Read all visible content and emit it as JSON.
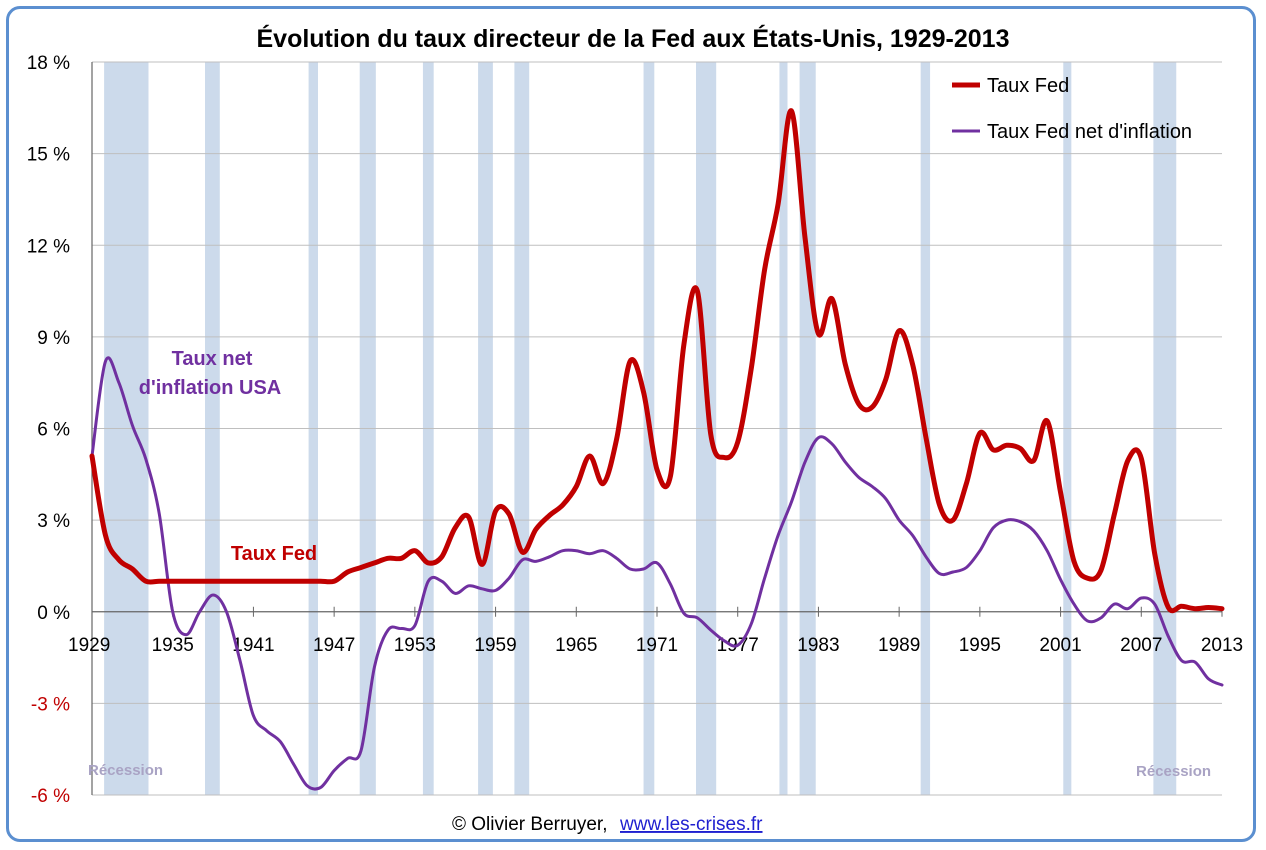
{
  "chart_data": {
    "type": "line",
    "title": "Évolution du taux directeur de la Fed aux États-Unis, 1929-2013",
    "xlim": [
      1929,
      2013
    ],
    "ylim": [
      -6,
      18
    ],
    "x_ticks": [
      "1929",
      "1935",
      "1941",
      "1947",
      "1953",
      "1959",
      "1965",
      "1971",
      "1977",
      "1983",
      "1989",
      "1995",
      "2001",
      "2007",
      "2013"
    ],
    "y_ticks": [
      "18 %",
      "15 %",
      "12 %",
      "9 %",
      "6 %",
      "3 %",
      "0 %",
      "-3 %",
      "-6 %"
    ],
    "y_tick_values": [
      18,
      15,
      12,
      9,
      6,
      3,
      0,
      -3,
      -6
    ],
    "x_tick_values": [
      1929,
      1935,
      1941,
      1947,
      1953,
      1959,
      1965,
      1971,
      1977,
      1983,
      1989,
      1995,
      2001,
      2007,
      2013
    ],
    "grid": "horizontal",
    "legend_position": "top-right",
    "series": [
      {
        "name": "Taux Fed",
        "color": "#c00000",
        "points": [
          [
            1929,
            5.1
          ],
          [
            1930,
            2.5
          ],
          [
            1931,
            1.7
          ],
          [
            1932,
            1.4
          ],
          [
            1933,
            1.0
          ],
          [
            1934,
            1.0
          ],
          [
            1935,
            1.0
          ],
          [
            1936,
            1.0
          ],
          [
            1937,
            1.0
          ],
          [
            1938,
            1.0
          ],
          [
            1939,
            1.0
          ],
          [
            1940,
            1.0
          ],
          [
            1941,
            1.0
          ],
          [
            1942,
            1.0
          ],
          [
            1943,
            1.0
          ],
          [
            1944,
            1.0
          ],
          [
            1945,
            1.0
          ],
          [
            1946,
            1.0
          ],
          [
            1947,
            1.0
          ],
          [
            1948,
            1.3
          ],
          [
            1949,
            1.45
          ],
          [
            1950,
            1.6
          ],
          [
            1951,
            1.75
          ],
          [
            1952,
            1.75
          ],
          [
            1953,
            2.0
          ],
          [
            1954,
            1.6
          ],
          [
            1955,
            1.8
          ],
          [
            1956,
            2.75
          ],
          [
            1957,
            3.1
          ],
          [
            1958,
            1.55
          ],
          [
            1959,
            3.3
          ],
          [
            1960,
            3.2
          ],
          [
            1961,
            1.95
          ],
          [
            1962,
            2.7
          ],
          [
            1963,
            3.15
          ],
          [
            1964,
            3.5
          ],
          [
            1965,
            4.1
          ],
          [
            1966,
            5.1
          ],
          [
            1967,
            4.2
          ],
          [
            1968,
            5.65
          ],
          [
            1969,
            8.2
          ],
          [
            1970,
            7.2
          ],
          [
            1971,
            4.65
          ],
          [
            1972,
            4.45
          ],
          [
            1973,
            8.75
          ],
          [
            1974,
            10.5
          ],
          [
            1975,
            5.8
          ],
          [
            1976,
            5.05
          ],
          [
            1977,
            5.55
          ],
          [
            1978,
            7.95
          ],
          [
            1979,
            11.2
          ],
          [
            1980,
            13.35
          ],
          [
            1981,
            16.4
          ],
          [
            1982,
            12.25
          ],
          [
            1983,
            9.1
          ],
          [
            1984,
            10.25
          ],
          [
            1985,
            8.1
          ],
          [
            1986,
            6.8
          ],
          [
            1987,
            6.7
          ],
          [
            1988,
            7.6
          ],
          [
            1989,
            9.2
          ],
          [
            1990,
            8.1
          ],
          [
            1991,
            5.7
          ],
          [
            1992,
            3.5
          ],
          [
            1993,
            3.0
          ],
          [
            1994,
            4.2
          ],
          [
            1995,
            5.85
          ],
          [
            1996,
            5.3
          ],
          [
            1997,
            5.45
          ],
          [
            1998,
            5.35
          ],
          [
            1999,
            4.95
          ],
          [
            2000,
            6.25
          ],
          [
            2001,
            3.9
          ],
          [
            2002,
            1.65
          ],
          [
            2003,
            1.1
          ],
          [
            2004,
            1.35
          ],
          [
            2005,
            3.2
          ],
          [
            2006,
            4.95
          ],
          [
            2007,
            5.02
          ],
          [
            2008,
            1.9
          ],
          [
            2009,
            0.15
          ],
          [
            2010,
            0.18
          ],
          [
            2011,
            0.1
          ],
          [
            2012,
            0.14
          ],
          [
            2013,
            0.1
          ]
        ]
      },
      {
        "name": "Taux Fed net d'inflation",
        "color": "#7030a0",
        "points": [
          [
            1929,
            5.1
          ],
          [
            1930,
            8.2
          ],
          [
            1931,
            7.5
          ],
          [
            1932,
            6.1
          ],
          [
            1933,
            5.0
          ],
          [
            1934,
            3.2
          ],
          [
            1935,
            0.0
          ],
          [
            1936,
            -0.75
          ],
          [
            1937,
            0.0
          ],
          [
            1938,
            0.55
          ],
          [
            1939,
            0.0
          ],
          [
            1940,
            -1.6
          ],
          [
            1941,
            -3.4
          ],
          [
            1942,
            -3.9
          ],
          [
            1943,
            -4.25
          ],
          [
            1944,
            -5.0
          ],
          [
            1945,
            -5.7
          ],
          [
            1946,
            -5.75
          ],
          [
            1947,
            -5.2
          ],
          [
            1948,
            -4.8
          ],
          [
            1949,
            -4.55
          ],
          [
            1950,
            -1.8
          ],
          [
            1951,
            -0.6
          ],
          [
            1952,
            -0.55
          ],
          [
            1953,
            -0.45
          ],
          [
            1954,
            1.0
          ],
          [
            1955,
            1.0
          ],
          [
            1956,
            0.6
          ],
          [
            1957,
            0.85
          ],
          [
            1958,
            0.75
          ],
          [
            1959,
            0.7
          ],
          [
            1960,
            1.1
          ],
          [
            1961,
            1.7
          ],
          [
            1962,
            1.65
          ],
          [
            1963,
            1.8
          ],
          [
            1964,
            2.0
          ],
          [
            1965,
            2.0
          ],
          [
            1966,
            1.9
          ],
          [
            1967,
            2.0
          ],
          [
            1968,
            1.75
          ],
          [
            1969,
            1.4
          ],
          [
            1970,
            1.4
          ],
          [
            1971,
            1.6
          ],
          [
            1972,
            0.9
          ],
          [
            1973,
            -0.05
          ],
          [
            1974,
            -0.2
          ],
          [
            1975,
            -0.6
          ],
          [
            1976,
            -0.95
          ],
          [
            1977,
            -1.1
          ],
          [
            1978,
            -0.4
          ],
          [
            1979,
            1.1
          ],
          [
            1980,
            2.5
          ],
          [
            1981,
            3.6
          ],
          [
            1982,
            4.9
          ],
          [
            1983,
            5.7
          ],
          [
            1984,
            5.5
          ],
          [
            1985,
            4.9
          ],
          [
            1986,
            4.4
          ],
          [
            1987,
            4.1
          ],
          [
            1988,
            3.7
          ],
          [
            1989,
            3.0
          ],
          [
            1990,
            2.5
          ],
          [
            1991,
            1.8
          ],
          [
            1992,
            1.25
          ],
          [
            1993,
            1.3
          ],
          [
            1994,
            1.45
          ],
          [
            1995,
            2.0
          ],
          [
            1996,
            2.75
          ],
          [
            1997,
            3.0
          ],
          [
            1998,
            2.95
          ],
          [
            1999,
            2.65
          ],
          [
            2000,
            2.0
          ],
          [
            2001,
            1.05
          ],
          [
            2002,
            0.25
          ],
          [
            2003,
            -0.3
          ],
          [
            2004,
            -0.2
          ],
          [
            2005,
            0.25
          ],
          [
            2006,
            0.1
          ],
          [
            2007,
            0.45
          ],
          [
            2008,
            0.25
          ],
          [
            2009,
            -0.8
          ],
          [
            2010,
            -1.6
          ],
          [
            2011,
            -1.65
          ],
          [
            2012,
            -2.2
          ],
          [
            2013,
            -2.4
          ]
        ]
      }
    ],
    "recession_bands": [
      [
        1929.9,
        1933.2
      ],
      [
        1937.4,
        1938.5
      ],
      [
        1945.1,
        1945.8
      ],
      [
        1948.9,
        1950.1
      ],
      [
        1953.6,
        1954.4
      ],
      [
        1957.7,
        1958.8
      ],
      [
        1960.4,
        1961.5
      ],
      [
        1970.0,
        1970.8
      ],
      [
        1973.9,
        1975.4
      ],
      [
        1980.1,
        1980.7
      ],
      [
        1981.6,
        1982.8
      ],
      [
        1990.6,
        1991.3
      ],
      [
        2001.2,
        2001.8
      ],
      [
        2007.9,
        2009.6
      ]
    ],
    "recession_color": "#ccdaeb",
    "annotations": {
      "net_label_line1": "Taux net",
      "net_label_line2": "d'inflation USA",
      "fed_label": "Taux Fed",
      "recession_left": "Récession",
      "recession_right": "Récession"
    }
  },
  "credit": {
    "text": "© Olivier Berruyer,",
    "link": "www.les-crises.fr"
  }
}
